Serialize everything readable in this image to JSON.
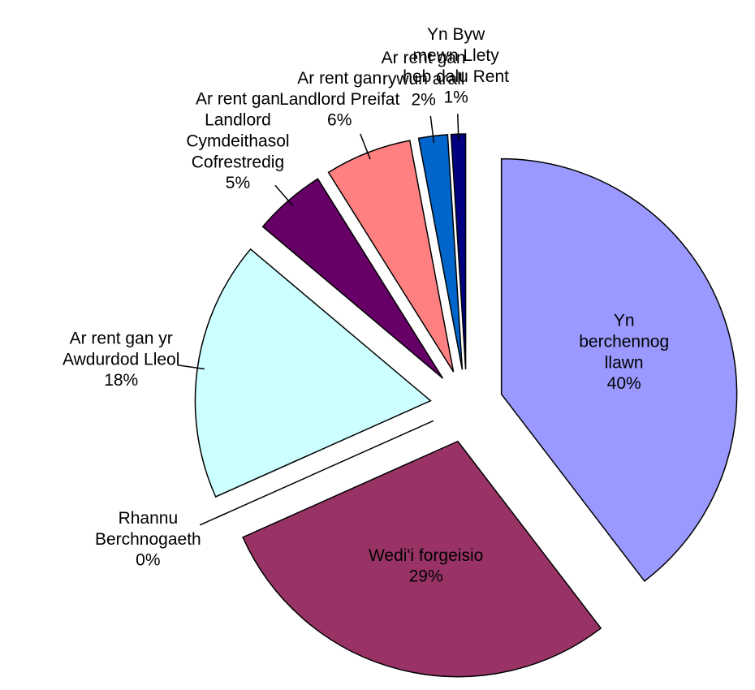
{
  "chart_data": {
    "type": "pie",
    "categories": [
      "Yn\nberchennog\nllawn",
      "Wedi'i forgeisio",
      "Rhannu\nBerchnogaeth",
      "Ar rent gan yr\nAwdurdod Lleol",
      "Ar rent gan\nLandlord\nCymdeithasol\nCofrestredig",
      "Ar rent gan\nLandlord Preifat",
      "Ar rent gan\nrywun arall",
      "Yn Byw\nmewn Llety\nheb dalu Rent"
    ],
    "values": [
      40,
      29,
      0,
      18,
      5,
      6,
      2,
      1
    ],
    "value_labels": [
      "40%",
      "29%",
      "0%",
      "18%",
      "5%",
      "6%",
      "2%",
      "1%"
    ],
    "colors": [
      "#9999ff",
      "#993366",
      "#ffffcc",
      "#ccffff",
      "#660066",
      "#ff8080",
      "#0066cc",
      "#000080"
    ]
  }
}
